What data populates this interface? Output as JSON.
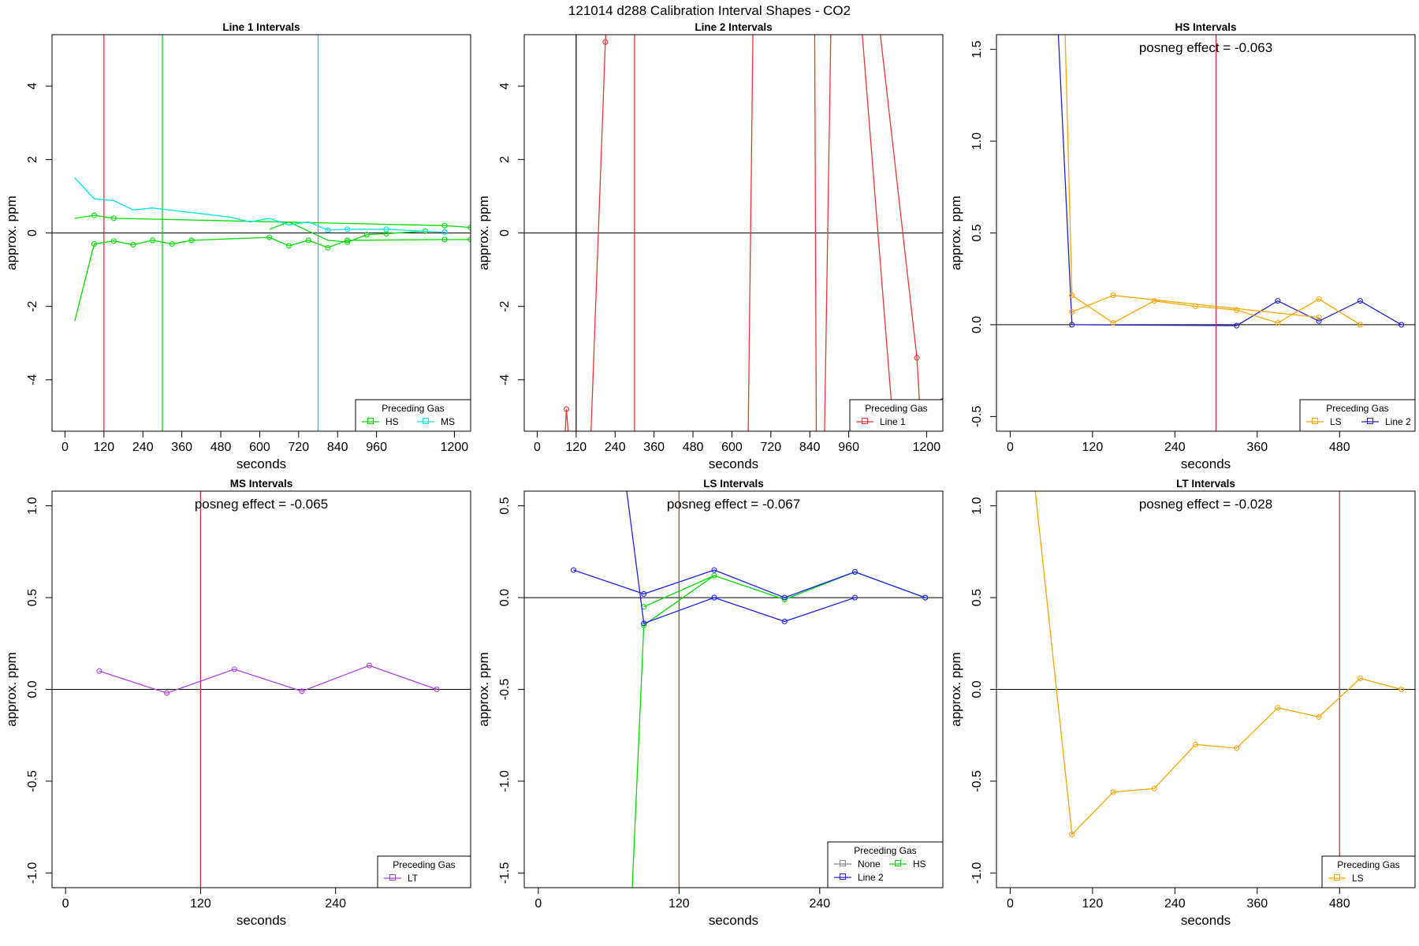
{
  "title": "121014  d288   Calibration Interval Shapes - CO2",
  "chart_data": [
    {
      "type": "line",
      "title": "Line 1 Intervals",
      "xlabel": "seconds",
      "ylabel": "approx. ppm",
      "xlim": [
        -40,
        1250
      ],
      "ylim": [
        -5.4,
        5.4
      ],
      "xticks": [
        "0",
        "120",
        "240",
        "360",
        "480",
        "600",
        "720",
        "840",
        "960",
        "1200"
      ],
      "xtick_values": [
        0,
        120,
        240,
        360,
        480,
        600,
        720,
        840,
        960,
        1200
      ],
      "yticks": [
        "-4",
        "-2",
        "0",
        "2",
        "4"
      ],
      "ytick_values": [
        -4,
        -2,
        0,
        2,
        4
      ],
      "hline": 0,
      "vlines": [
        {
          "x": 120,
          "color": "#cd2626"
        },
        {
          "x": 300,
          "color": "#00cd00"
        },
        {
          "x": 780,
          "color": "#00cdcd"
        }
      ],
      "legend": {
        "title": "Preceding Gas",
        "position": "bottom-right",
        "entries": [
          {
            "label": "HS",
            "color": "#00dd00"
          },
          {
            "label": "MS",
            "color": "#00e5e5"
          }
        ]
      },
      "series": [
        {
          "name": "HS",
          "color": "#00dd00",
          "points": [
            [
              30,
              0.4
            ],
            [
              90,
              0.48
            ],
            [
              150,
              0.4
            ],
            [
              1170,
              0.2
            ],
            [
              1250,
              0.15
            ]
          ],
          "trail_x": [
            90,
            1250
          ]
        },
        {
          "name": "HS",
          "color": "#00dd00",
          "points": [
            [
              30,
              -2.4
            ],
            [
              90,
              -0.3
            ],
            [
              150,
              -0.22
            ],
            [
              210,
              -0.32
            ],
            [
              270,
              -0.2
            ],
            [
              330,
              -0.3
            ],
            [
              390,
              -0.2
            ],
            [
              630,
              -0.12
            ],
            [
              690,
              -0.35
            ],
            [
              750,
              -0.2
            ],
            [
              810,
              -0.4
            ],
            [
              870,
              -0.2
            ],
            [
              1170,
              -0.18
            ],
            [
              1250,
              -0.18
            ]
          ],
          "trail_x": [
            90,
            1250
          ]
        },
        {
          "name": "HS",
          "color": "#00dd00",
          "points": [
            [
              630,
              0.1
            ],
            [
              690,
              0.3
            ],
            [
              810,
              -0.2
            ],
            [
              870,
              -0.25
            ],
            [
              930,
              -0.05
            ],
            [
              990,
              -0.02
            ],
            [
              1110,
              0.05
            ]
          ],
          "trail_x": [
            870,
            1110
          ]
        },
        {
          "name": "MS",
          "color": "#00e5e5",
          "points": [
            [
              30,
              1.5
            ],
            [
              90,
              0.93
            ],
            [
              150,
              0.88
            ],
            [
              210,
              0.63
            ],
            [
              270,
              0.68
            ],
            [
              510,
              0.43
            ],
            [
              570,
              0.3
            ],
            [
              630,
              0.4
            ],
            [
              690,
              0.22
            ],
            [
              750,
              0.3
            ],
            [
              810,
              0.08
            ],
            [
              870,
              0.1
            ],
            [
              990,
              0.1
            ],
            [
              1170,
              0.02
            ]
          ],
          "trail_x": [
            810,
            1170
          ]
        }
      ]
    },
    {
      "type": "line",
      "title": "Line 2 Intervals",
      "xlabel": "seconds",
      "ylabel": "approx. ppm",
      "xlim": [
        -40,
        1250
      ],
      "ylim": [
        -5.4,
        5.4
      ],
      "xticks": [
        "0",
        "120",
        "240",
        "360",
        "480",
        "600",
        "720",
        "840",
        "960",
        "1200"
      ],
      "xtick_values": [
        0,
        120,
        240,
        360,
        480,
        600,
        720,
        840,
        960,
        1200
      ],
      "yticks": [
        "-4",
        "-2",
        "0",
        "2",
        "4"
      ],
      "ytick_values": [
        -4,
        -2,
        0,
        2,
        4
      ],
      "hline": 0,
      "vlines": [
        {
          "x": 120,
          "color": "#000000"
        },
        {
          "x": 300,
          "color": "#cd2626"
        }
      ],
      "legend": {
        "title": "Preceding Gas",
        "position": "bottom-right",
        "entries": [
          {
            "label": "Line 1",
            "color": "#ee3333"
          }
        ]
      },
      "series": [
        {
          "name": "Line 1",
          "color": "#ee3333",
          "points": [
            [
              85,
              -5.6
            ],
            [
              90,
              -4.8
            ],
            [
              97,
              -5.6
            ]
          ],
          "trail_x": [
            90,
            90
          ]
        },
        {
          "name": "Line 1",
          "color": "#ee3333",
          "points": [
            [
              165,
              -5.6
            ],
            [
              210,
              5.2
            ],
            [
              213,
              5.6
            ]
          ],
          "trail_x": [
            210,
            210
          ]
        },
        {
          "name": "Line 1",
          "color": "#ee3333",
          "points": [
            [
              650,
              -5.6
            ],
            [
              665,
              5.6
            ]
          ],
          "trail_x": []
        },
        {
          "name": "Line 1",
          "color": "#ee3333",
          "points": [
            [
              855,
              5.6
            ],
            [
              860,
              -5.6
            ]
          ],
          "trail_x": []
        },
        {
          "name": "Line 1",
          "color": "#ee3333",
          "points": [
            [
              885,
              -5.6
            ],
            [
              905,
              5.6
            ]
          ],
          "trail_x": []
        },
        {
          "name": "Line 1",
          "color": "#ee3333",
          "points": [
            [
              1000,
              5.6
            ],
            [
              1100,
              -5.6
            ]
          ],
          "trail_x": []
        },
        {
          "name": "Line 1",
          "color": "#ee3333",
          "points": [
            [
              1055,
              5.6
            ],
            [
              1170,
              -3.4
            ],
            [
              1180,
              -4.9
            ],
            [
              1250,
              -4.5
            ]
          ],
          "trail_x": [
            1170,
            1170
          ]
        }
      ]
    },
    {
      "type": "line",
      "title": "HS Intervals",
      "xlabel": "seconds",
      "ylabel": "approx. ppm",
      "annotation": "posneg effect = -0.063",
      "xlim": [
        -20,
        590
      ],
      "ylim": [
        -0.58,
        1.58
      ],
      "xticks": [
        "0",
        "120",
        "240",
        "360",
        "480"
      ],
      "xtick_values": [
        0,
        120,
        240,
        360,
        480
      ],
      "yticks": [
        "-0.5",
        "0.0",
        "0.5",
        "1.0",
        "1.5"
      ],
      "ytick_values": [
        -0.5,
        0,
        0.5,
        1,
        1.5
      ],
      "hline": 0,
      "vlines": [
        {
          "x": 300,
          "color": "#cd2626"
        }
      ],
      "legend": {
        "title": "Preceding Gas",
        "position": "bottom-right",
        "entries": [
          {
            "label": "LS",
            "color": "#ffa500"
          },
          {
            "label": "Line 2",
            "color": "#2222cc"
          }
        ]
      },
      "series": [
        {
          "name": "Line 2",
          "color": "#2222cc",
          "points": [
            [
              70,
              1.6
            ],
            [
              90,
              0.0
            ],
            [
              330,
              -0.005
            ],
            [
              390,
              0.13
            ],
            [
              450,
              0.02
            ],
            [
              510,
              0.13
            ],
            [
              570,
              0.0
            ]
          ],
          "trail_x": [
            90,
            570
          ]
        },
        {
          "name": "LS",
          "color": "#ffa500",
          "points": [
            [
              80,
              1.6
            ],
            [
              90,
              0.16
            ],
            [
              150,
              0.01
            ],
            [
              210,
              0.13
            ],
            [
              270,
              0.1
            ],
            [
              330,
              0.08
            ],
            [
              390,
              0.01
            ],
            [
              450,
              0.14
            ],
            [
              510,
              0.0
            ]
          ],
          "trail_x": [
            90,
            510
          ]
        },
        {
          "name": "LS",
          "color": "#ffa500",
          "points": [
            [
              90,
              0.07
            ],
            [
              150,
              0.16
            ],
            [
              450,
              0.04
            ]
          ],
          "trail_x": [
            90,
            450
          ]
        }
      ]
    },
    {
      "type": "line",
      "title": "MS Intervals",
      "xlabel": "seconds",
      "ylabel": "approx. ppm",
      "annotation": "posneg effect = -0.065",
      "xlim": [
        -12,
        360
      ],
      "ylim": [
        -1.08,
        1.08
      ],
      "xticks": [
        "0",
        "120",
        "240"
      ],
      "xtick_values": [
        0,
        120,
        240
      ],
      "yticks": [
        "-1.0",
        "-0.5",
        "0.0",
        "0.5",
        "1.0"
      ],
      "ytick_values": [
        -1,
        -0.5,
        0,
        0.5,
        1
      ],
      "hline": 0,
      "vlines": [
        {
          "x": 120,
          "color": "#cd2626"
        }
      ],
      "legend": {
        "title": "Preceding Gas",
        "position": "bottom-right",
        "entries": [
          {
            "label": "LT",
            "color": "#b23fe8"
          }
        ]
      },
      "series": [
        {
          "name": "LT",
          "color": "#b23fe8",
          "points": [
            [
              30,
              0.1
            ],
            [
              90,
              -0.02
            ],
            [
              150,
              0.11
            ],
            [
              210,
              -0.01
            ],
            [
              270,
              0.13
            ],
            [
              330,
              0.0
            ]
          ],
          "trail_x": [
            30,
            330
          ]
        }
      ]
    },
    {
      "type": "line",
      "title": "LS Intervals",
      "xlabel": "seconds",
      "ylabel": "approx. ppm",
      "annotation": "posneg effect = -0.067",
      "xlim": [
        -12,
        345
      ],
      "ylim": [
        -1.58,
        0.58
      ],
      "xticks": [
        "0",
        "120",
        "240"
      ],
      "xtick_values": [
        0,
        120,
        240
      ],
      "yticks": [
        "-1.5",
        "-1.0",
        "-0.5",
        "0.0",
        "0.5"
      ],
      "ytick_values": [
        -1.5,
        -1,
        -0.5,
        0,
        0.5
      ],
      "hline": 0,
      "vlines": [
        {
          "x": 120,
          "color": "#cd2626"
        }
      ],
      "legend": {
        "title": "Preceding Gas",
        "position": "bottom-right",
        "entries": [
          {
            "label": "None",
            "color": "#888888"
          },
          {
            "label": "HS",
            "color": "#00dd00"
          },
          {
            "label": "Line 2",
            "color": "#2222ee"
          }
        ]
      },
      "series": [
        {
          "name": "HS",
          "color": "#00dd00",
          "points": [
            [
              80,
              -1.6
            ],
            [
              90,
              -0.15
            ],
            [
              150,
              0.12
            ],
            [
              210,
              -0.01
            ],
            [
              270,
              0.14
            ],
            [
              330,
              0.0
            ]
          ],
          "trail_x": [
            90,
            330
          ]
        },
        {
          "name": "HS",
          "color": "#00dd00",
          "points": [
            [
              90,
              -0.05
            ],
            [
              150,
              0.12
            ]
          ],
          "trail_x": [
            90,
            90
          ]
        },
        {
          "name": "Line 2",
          "color": "#2222ee",
          "points": [
            [
              30,
              0.15
            ],
            [
              90,
              0.02
            ],
            [
              150,
              0.15
            ],
            [
              210,
              0.0
            ],
            [
              270,
              0.14
            ],
            [
              330,
              0.0
            ]
          ],
          "trail_x": [
            30,
            330
          ]
        },
        {
          "name": "Line 2",
          "color": "#2222ee",
          "points": [
            [
              75,
              0.6
            ],
            [
              90,
              -0.14
            ],
            [
              150,
              0.0
            ],
            [
              210,
              -0.13
            ],
            [
              270,
              0.0
            ]
          ],
          "trail_x": [
            90,
            270
          ]
        }
      ]
    },
    {
      "type": "line",
      "title": "LT Intervals",
      "xlabel": "seconds",
      "ylabel": "approx. ppm",
      "annotation": "posneg effect = -0.028",
      "xlim": [
        -20,
        590
      ],
      "ylim": [
        -1.08,
        1.08
      ],
      "xticks": [
        "0",
        "120",
        "240",
        "360",
        "480"
      ],
      "xtick_values": [
        0,
        120,
        240,
        360,
        480
      ],
      "yticks": [
        "-1.0",
        "-0.5",
        "0.0",
        "0.5",
        "1.0"
      ],
      "ytick_values": [
        -1,
        -0.5,
        0,
        0.5,
        1
      ],
      "hline": 0,
      "vlines": [
        {
          "x": 480,
          "color": "#cd2626"
        }
      ],
      "legend": {
        "title": "Preceding Gas",
        "position": "bottom-right",
        "entries": [
          {
            "label": "LS",
            "color": "#ffa500"
          }
        ]
      },
      "series": [
        {
          "name": "LS",
          "color": "#ffa500",
          "points": [
            [
              36,
              1.1
            ],
            [
              90,
              -0.79
            ],
            [
              150,
              -0.56
            ],
            [
              210,
              -0.54
            ],
            [
              270,
              -0.3
            ],
            [
              330,
              -0.32
            ],
            [
              390,
              -0.1
            ],
            [
              450,
              -0.15
            ],
            [
              510,
              0.06
            ],
            [
              570,
              0.0
            ]
          ],
          "trail_x": [
            90,
            570
          ]
        }
      ]
    }
  ]
}
